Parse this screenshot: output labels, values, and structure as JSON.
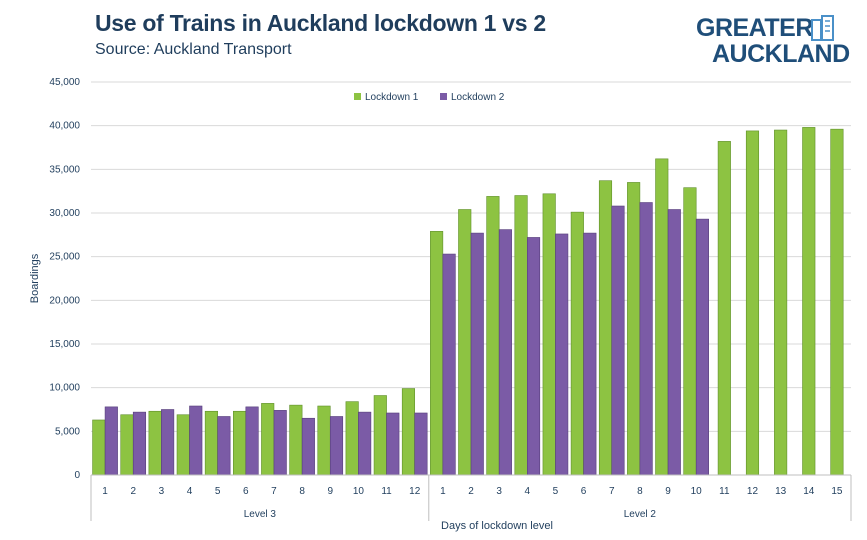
{
  "header": {
    "title": "Use of Trains in Auckland lockdown 1 vs 2",
    "subtitle": "Source: Auckland Transport"
  },
  "logo": {
    "line1": "GREATER",
    "line2": "AUCKLAND",
    "icon": "city-buildings-icon"
  },
  "colors": {
    "lockdown1": "#8dc342",
    "lockdown2": "#7b5ba6",
    "title": "#1f3d5c",
    "grid": "#d9d9d9"
  },
  "chart_data": {
    "type": "bar",
    "title": "Use of Trains in Auckland lockdown 1 vs 2",
    "subtitle": "Source: Auckland Transport",
    "xlabel": "Days of lockdown level",
    "ylabel": "Boardings",
    "ylim": [
      0,
      45000
    ],
    "yticks": [
      "0",
      "5,000",
      "10,000",
      "15,000",
      "20,000",
      "25,000",
      "30,000",
      "35,000",
      "40,000",
      "45,000"
    ],
    "grid": true,
    "legend_position": "top-center",
    "groups": [
      {
        "label": "Level 3",
        "count": 12
      },
      {
        "label": "Level 2",
        "count": 15
      }
    ],
    "categories": [
      "1",
      "2",
      "3",
      "4",
      "5",
      "6",
      "7",
      "8",
      "9",
      "10",
      "11",
      "12",
      "1",
      "2",
      "3",
      "4",
      "5",
      "6",
      "7",
      "8",
      "9",
      "10",
      "11",
      "12",
      "13",
      "14",
      "15"
    ],
    "series": [
      {
        "name": "Lockdown 1",
        "values": [
          6300,
          6900,
          7300,
          6900,
          7300,
          7300,
          8200,
          8000,
          7900,
          8400,
          9100,
          9900,
          27900,
          30400,
          31900,
          32000,
          32200,
          30100,
          33700,
          33500,
          36200,
          32900,
          38200,
          39400,
          39500,
          39800,
          39600
        ]
      },
      {
        "name": "Lockdown 2",
        "values": [
          7800,
          7200,
          7500,
          7900,
          6700,
          7800,
          7400,
          6500,
          6700,
          7200,
          7100,
          7100,
          25300,
          27700,
          28100,
          27200,
          27600,
          27700,
          30800,
          31200,
          30400,
          29300,
          null,
          null,
          null,
          null,
          null
        ]
      }
    ]
  }
}
